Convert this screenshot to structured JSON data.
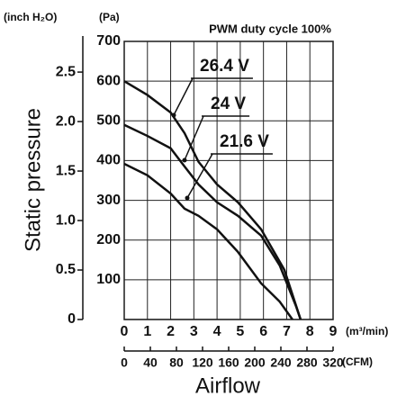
{
  "chart_data": {
    "type": "line",
    "title": "PWM duty cycle 100%",
    "y_label": "Static pressure",
    "y_unit": "(Pa)",
    "y2_unit": "(inch H₂O)",
    "x_label": "Airflow",
    "x_unit": "(m³/min)",
    "x2_unit": "(CFM)",
    "xlim": [
      0,
      9
    ],
    "xticks": [
      0,
      1,
      2,
      3,
      4,
      5,
      6,
      7,
      8,
      9
    ],
    "x2lim": [
      0,
      320
    ],
    "x2ticks": [
      0,
      40,
      80,
      120,
      160,
      200,
      240,
      280,
      320
    ],
    "ylim": [
      0,
      700
    ],
    "yticks": [
      100,
      200,
      300,
      400,
      500,
      600,
      700
    ],
    "y2lim": [
      0,
      2.81
    ],
    "y2ticks": [
      0,
      0.5,
      {
        "value": 1,
        "label": "1.0"
      },
      1.5,
      {
        "value": 2,
        "label": "2.0"
      },
      2.5
    ],
    "grid": true,
    "series": [
      {
        "name": "26.4 V",
        "color": "#111111",
        "x": [
          0,
          1,
          2,
          2.6,
          3.2,
          4,
          4.9,
          5.9,
          6.9,
          7.6
        ],
        "values": [
          600,
          565,
          521,
          469,
          397,
          340,
          295,
          227,
          125,
          0
        ]
      },
      {
        "name": "24 V",
        "color": "#111111",
        "x": [
          0,
          1,
          2,
          2.6,
          3.2,
          4,
          4.9,
          5.9,
          6.7,
          7.4,
          7.6
        ],
        "values": [
          490,
          462,
          431,
          385,
          340,
          295,
          261,
          211,
          136,
          34,
          0
        ]
      },
      {
        "name": "21.6 V",
        "color": "#111111",
        "x": [
          0,
          1,
          2,
          2.6,
          3.2,
          4,
          4.9,
          5.9,
          6.7,
          7.25
        ],
        "values": [
          392,
          363,
          317,
          279,
          261,
          227,
          170,
          91,
          45,
          0
        ]
      }
    ]
  }
}
